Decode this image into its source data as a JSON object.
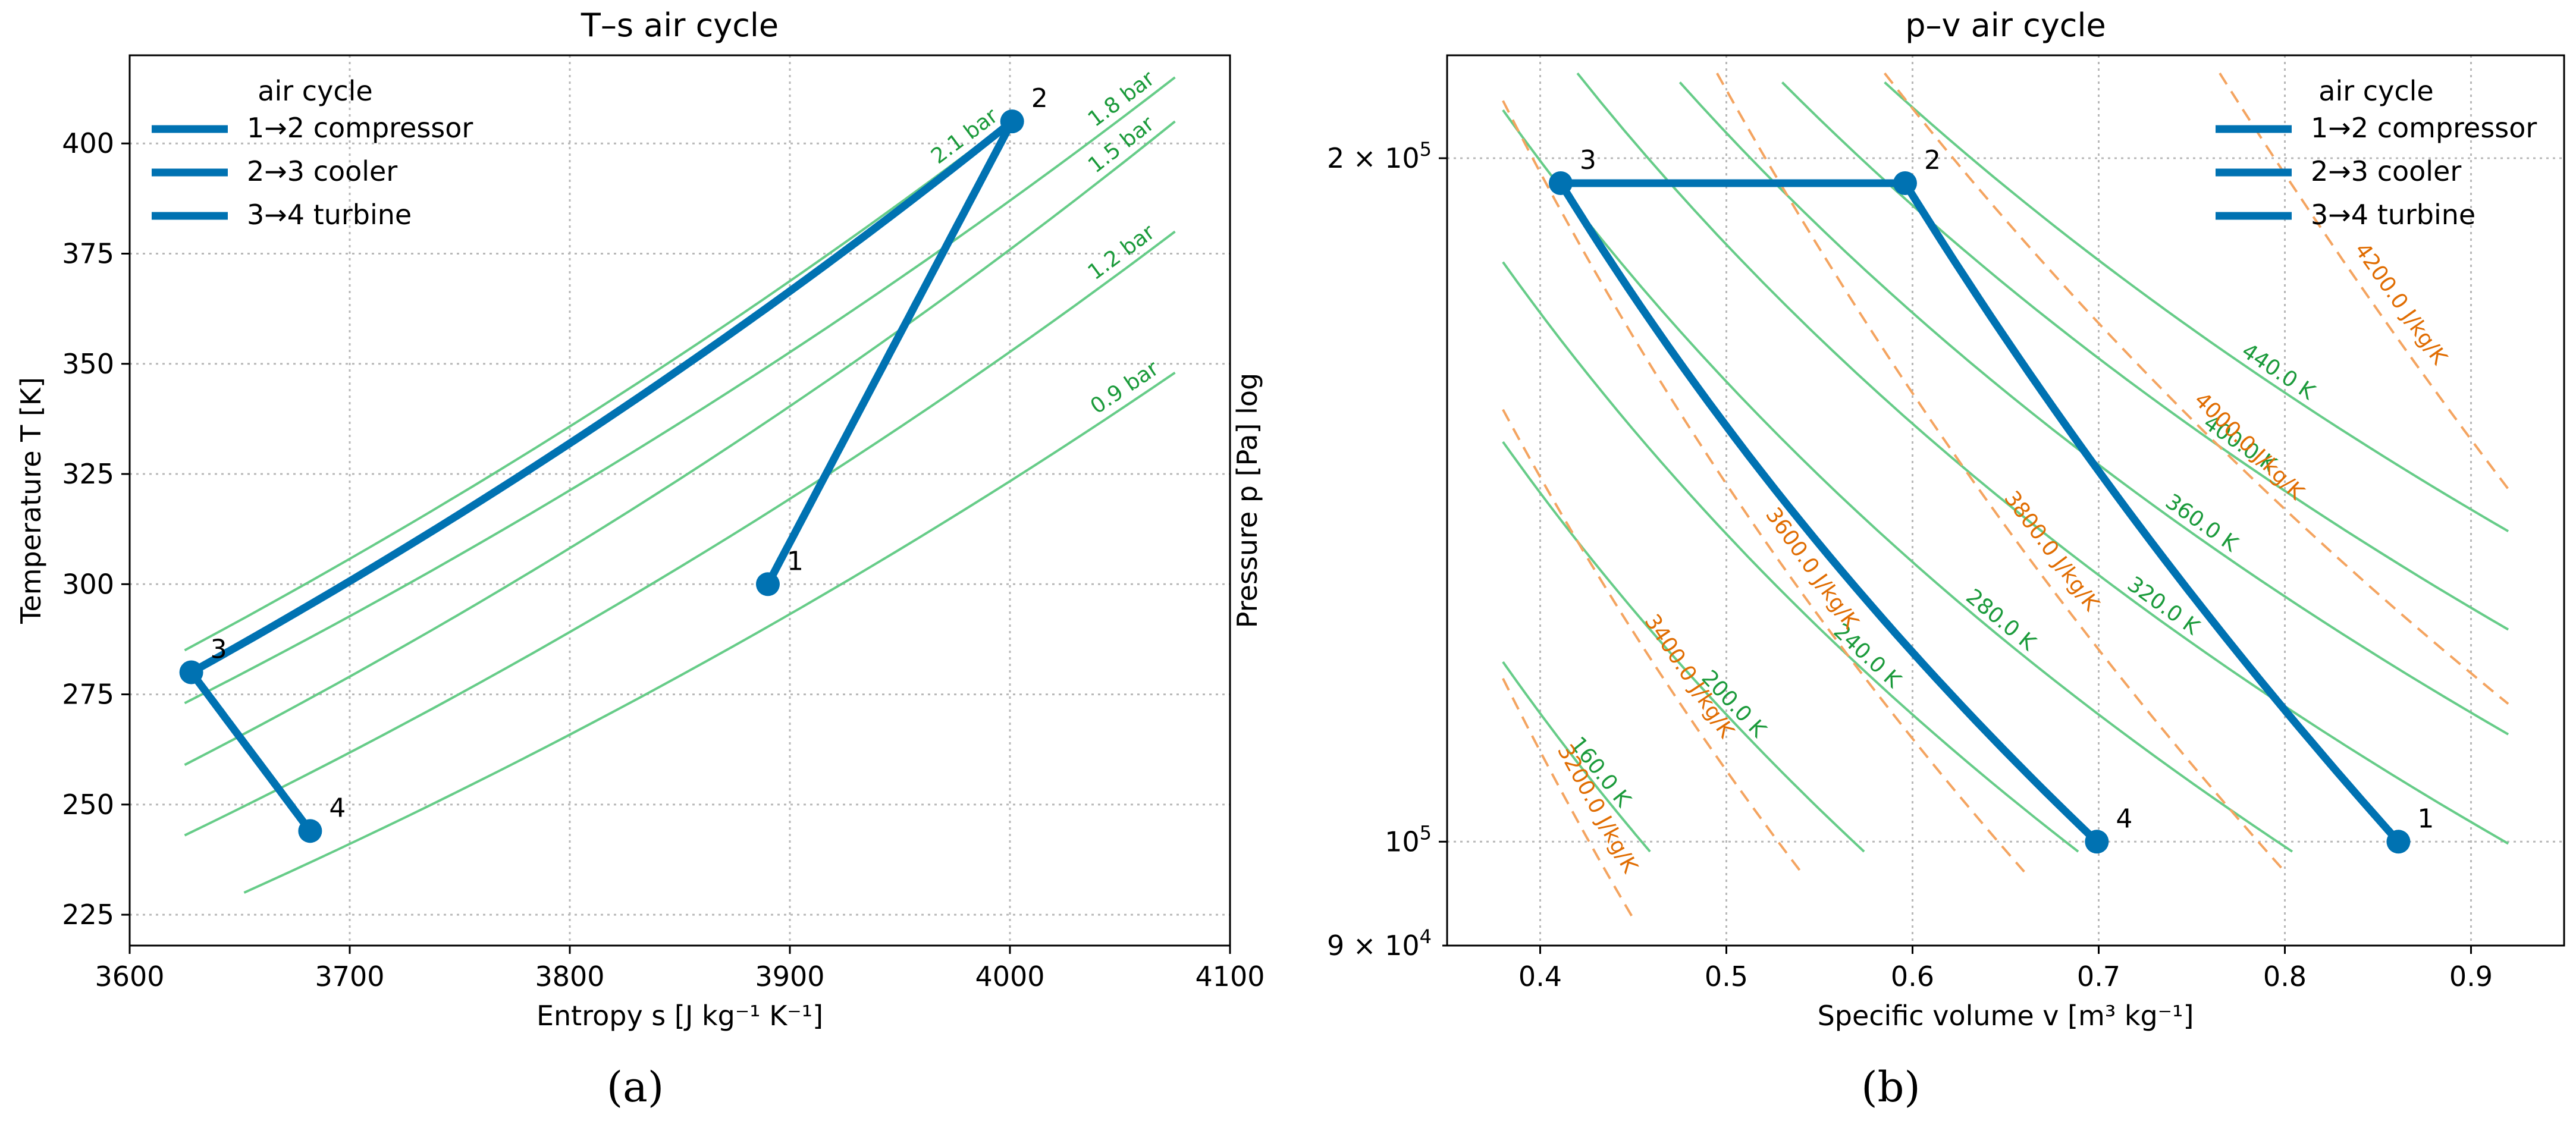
{
  "figure": {
    "panel_labels": [
      "(a)",
      "(b)"
    ]
  },
  "chart_data": [
    {
      "type": "line",
      "title": "T–s air cycle",
      "xlabel": "Entropy s [J kg⁻¹ K⁻¹]",
      "ylabel": "Temperature T [K]",
      "xlim": [
        3600,
        4100
      ],
      "ylim": [
        218,
        420
      ],
      "x_ticks": [
        3600,
        3700,
        3800,
        3900,
        4000,
        4100
      ],
      "x_tick_labels": [
        "3600",
        "3700",
        "3800",
        "3900",
        "4000",
        "4100"
      ],
      "y_ticks": [
        225,
        250,
        275,
        300,
        325,
        350,
        375,
        400
      ],
      "y_tick_labels": [
        "225",
        "250",
        "275",
        "300",
        "325",
        "350",
        "375",
        "400"
      ],
      "grid": "on",
      "legend": {
        "title": "air cycle",
        "placement": "top-left",
        "entries": [
          "1→2 compressor",
          "2→3 cooler",
          "3→4 turbine"
        ]
      },
      "series": [
        {
          "name": "1→2 compressor",
          "color": "#0072B2",
          "x": [
            3890,
            4001
          ],
          "y": [
            300,
            405
          ]
        },
        {
          "name": "2→3 cooler",
          "color": "#0072B2",
          "x": [
            4001,
            3628
          ],
          "y": [
            405,
            280
          ]
        },
        {
          "name": "3→4 turbine",
          "color": "#0072B2",
          "x": [
            3628,
            3682
          ],
          "y": [
            280,
            244
          ]
        }
      ],
      "state_points": [
        {
          "label": "1",
          "x": 3890,
          "y": 300
        },
        {
          "label": "2",
          "x": 4001,
          "y": 405
        },
        {
          "label": "3",
          "x": 3628,
          "y": 280
        },
        {
          "label": "4",
          "x": 3682,
          "y": 244
        }
      ],
      "isobars": {
        "color": "#66CC88",
        "label_color": "#1A9A3A",
        "lines": [
          {
            "label": "2.1 bar",
            "x": [
              3625,
              4000
            ],
            "y": [
              285,
              405
            ]
          },
          {
            "label": "1.8 bar",
            "x": [
              3625,
              4075
            ],
            "y": [
              273,
              415
            ]
          },
          {
            "label": "1.5 bar",
            "x": [
              3625,
              4075
            ],
            "y": [
              259,
              405
            ]
          },
          {
            "label": "1.2 bar",
            "x": [
              3625,
              4075
            ],
            "y": [
              243,
              380
            ]
          },
          {
            "label": "0.9 bar",
            "x": [
              3652,
              4075
            ],
            "y": [
              230,
              348
            ]
          }
        ]
      }
    },
    {
      "type": "line",
      "title": "p–v air cycle",
      "xlabel": "Specific volume v [m³ kg⁻¹]",
      "ylabel": "Pressure p [Pa]  log",
      "xlim": [
        0.35,
        0.95
      ],
      "ylim": [
        90000,
        222000
      ],
      "y_scale": "log",
      "x_ticks": [
        0.4,
        0.5,
        0.6,
        0.7,
        0.8,
        0.9
      ],
      "x_tick_labels": [
        "0.4",
        "0.5",
        "0.6",
        "0.7",
        "0.8",
        "0.9"
      ],
      "y_major_ticks": [
        100000,
        200000
      ],
      "y_major_labels": [
        {
          "base": "10",
          "exp": "5",
          "mult": ""
        },
        {
          "base": "10",
          "exp": "5",
          "mult": "2 × "
        }
      ],
      "y_minor_ticks": [
        90000
      ],
      "y_minor_labels": [
        {
          "base": "10",
          "exp": "4",
          "mult": "9 × "
        }
      ],
      "grid": "on",
      "legend": {
        "title": "air cycle",
        "placement": "top-right",
        "entries": [
          "1→2 compressor",
          "2→3 cooler",
          "3→4 turbine"
        ]
      },
      "series": [
        {
          "name": "1→2 compressor",
          "color": "#0072B2",
          "x": [
            0.861,
            0.596
          ],
          "y": [
            100000,
            195000
          ]
        },
        {
          "name": "2→3 cooler",
          "color": "#0072B2",
          "x": [
            0.596,
            0.411
          ],
          "y": [
            195000,
            195000
          ]
        },
        {
          "name": "3→4 turbine",
          "color": "#0072B2",
          "x": [
            0.411,
            0.699
          ],
          "y": [
            195000,
            100000
          ]
        }
      ],
      "state_points": [
        {
          "label": "1",
          "x": 0.861,
          "y": 100000
        },
        {
          "label": "2",
          "x": 0.596,
          "y": 195000
        },
        {
          "label": "3",
          "x": 0.411,
          "y": 195000
        },
        {
          "label": "4",
          "x": 0.699,
          "y": 100000
        }
      ],
      "isotherms": {
        "color": "#66CC88",
        "label_color": "#1A9A3A",
        "lines": [
          {
            "label": "160.0 K",
            "x": [
              0.38,
              0.459
            ],
            "y": [
              120000,
              99000
            ]
          },
          {
            "label": "200.0 K",
            "x": [
              0.38,
              0.574
            ],
            "y": [
              150000,
              99000
            ]
          },
          {
            "label": "240.0 K",
            "x": [
              0.38,
              0.689
            ],
            "y": [
              180000,
              99000
            ]
          },
          {
            "label": "280.0 K",
            "x": [
              0.38,
              0.804
            ],
            "y": [
              210000,
              99000
            ]
          },
          {
            "label": "320.0 K",
            "x": [
              0.42,
              0.92
            ],
            "y": [
              218000,
              99800
            ]
          },
          {
            "label": "360.0 K",
            "x": [
              0.475,
              0.92
            ],
            "y": [
              216000,
              111500
            ]
          },
          {
            "label": "400.0 K",
            "x": [
              0.53,
              0.92
            ],
            "y": [
              216000,
              124000
            ]
          },
          {
            "label": "440.0 K",
            "x": [
              0.585,
              0.92
            ],
            "y": [
              216000,
              137000
            ]
          }
        ]
      },
      "isentropes": {
        "color": "#F4A460",
        "label_color": "#E06C00",
        "lines": [
          {
            "label": "3200.0 J/kg/K",
            "x": [
              0.38,
              0.45
            ],
            "y": [
              118000,
              92500
            ]
          },
          {
            "label": "3400.0 J/kg/K",
            "x": [
              0.38,
              0.54
            ],
            "y": [
              155000,
              97000
            ]
          },
          {
            "label": "3600.0 J/kg/K",
            "x": [
              0.38,
              0.66
            ],
            "y": [
              212000,
              97000
            ]
          },
          {
            "label": "3800.0 J/kg/K",
            "x": [
              0.495,
              0.8
            ],
            "y": [
              218000,
              97000
            ]
          },
          {
            "label": "4000.0 J/kg/K",
            "x": [
              0.585,
              0.92
            ],
            "y": [
              218000,
              115000
            ]
          },
          {
            "label": "4200.0 J/kg/K",
            "x": [
              0.765,
              0.92
            ],
            "y": [
              218000,
              143000
            ]
          }
        ]
      }
    }
  ]
}
